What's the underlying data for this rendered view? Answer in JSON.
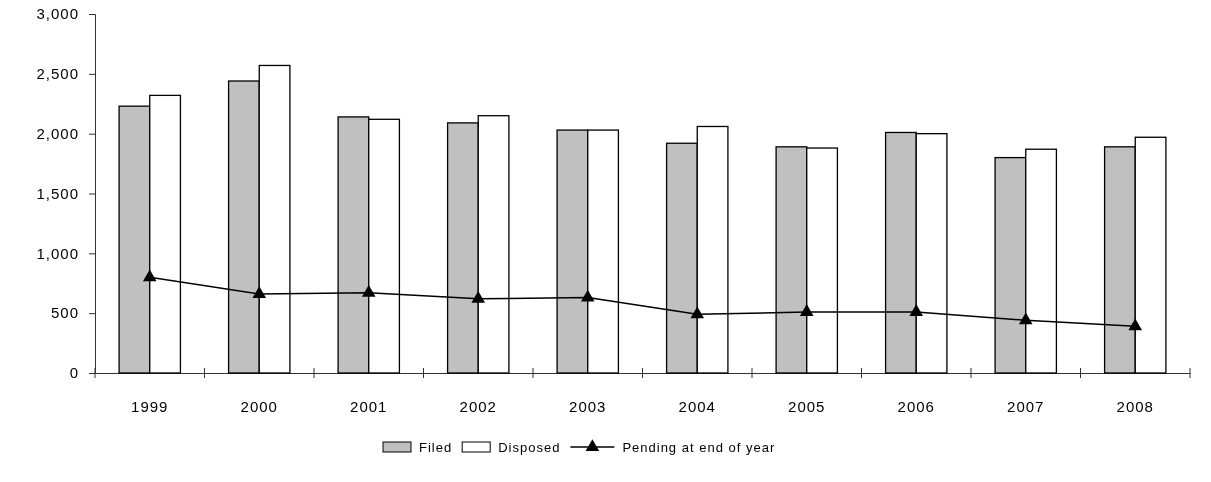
{
  "chart_data": {
    "type": "bar",
    "categories": [
      "1999",
      "2000",
      "2001",
      "2002",
      "2003",
      "2004",
      "2005",
      "2006",
      "2007",
      "2008"
    ],
    "series": [
      {
        "name": "Filed",
        "color": "#c0c0c0",
        "values": [
          2230,
          2440,
          2140,
          2090,
          2030,
          1920,
          1890,
          2010,
          1800,
          1890
        ]
      },
      {
        "name": "Disposed",
        "color": "#ffffff",
        "values": [
          2320,
          2570,
          2120,
          2150,
          2030,
          2060,
          1880,
          2000,
          1870,
          1970
        ]
      },
      {
        "name": "Pending at end of year",
        "type": "line",
        "color": "#000000",
        "marker": "triangle",
        "values": [
          800,
          660,
          670,
          620,
          630,
          490,
          510,
          510,
          440,
          390
        ]
      }
    ],
    "ylim": [
      0,
      3000
    ],
    "yticks": [
      {
        "value": 0,
        "label": "0"
      },
      {
        "value": 500,
        "label": "500"
      },
      {
        "value": 1000,
        "label": "1,000"
      },
      {
        "value": 1500,
        "label": "1,500"
      },
      {
        "value": 2000,
        "label": "2,000"
      },
      {
        "value": 2500,
        "label": "2,500"
      },
      {
        "value": 3000,
        "label": "3,000"
      }
    ],
    "grid": false,
    "legend": "bottom"
  }
}
